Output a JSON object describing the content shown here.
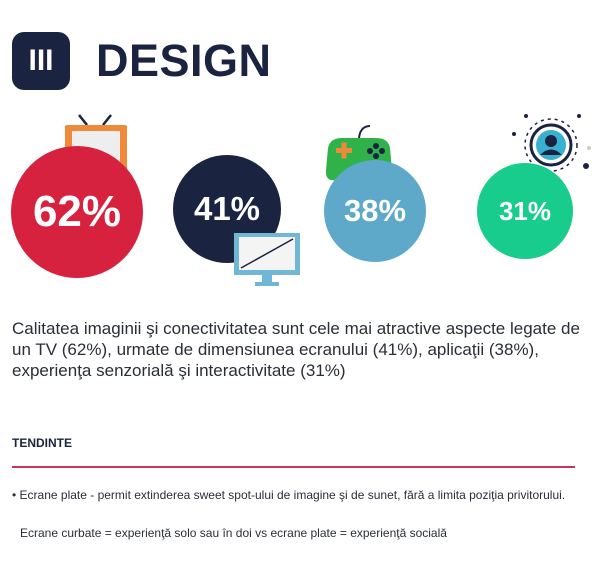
{
  "header": {
    "section_number": "III",
    "title": "DESIGN"
  },
  "stats": [
    {
      "value": "62%",
      "color": "#d6213f",
      "icon": "tv-icon"
    },
    {
      "value": "41%",
      "color": "#1a2340",
      "icon": "monitor-icon"
    },
    {
      "value": "38%",
      "color": "#5ea9c9",
      "icon": "gamepad-icon"
    },
    {
      "value": "31%",
      "color": "#17cc8c",
      "icon": "user-avatar-icon"
    }
  ],
  "description": "Calitatea imaginii şi conectivitatea sunt cele mai atractive aspecte legate de un TV (62%), urmate de dimensiunea ecranului (41%), aplicaţii (38%), experienţa senzorială şi interactivitate (31%)",
  "trends": {
    "label": "TENDINTE",
    "accent_color": "#c8375a",
    "bullet_1": "• Ecrane plate - permit extinderea sweet spot-ului de imagine şi de sunet, fără a limita poziţia privitorului.",
    "bullet_2": "Ecrane curbate = experienţă solo sau în doi vs ecrane plate = experienţă socială"
  }
}
